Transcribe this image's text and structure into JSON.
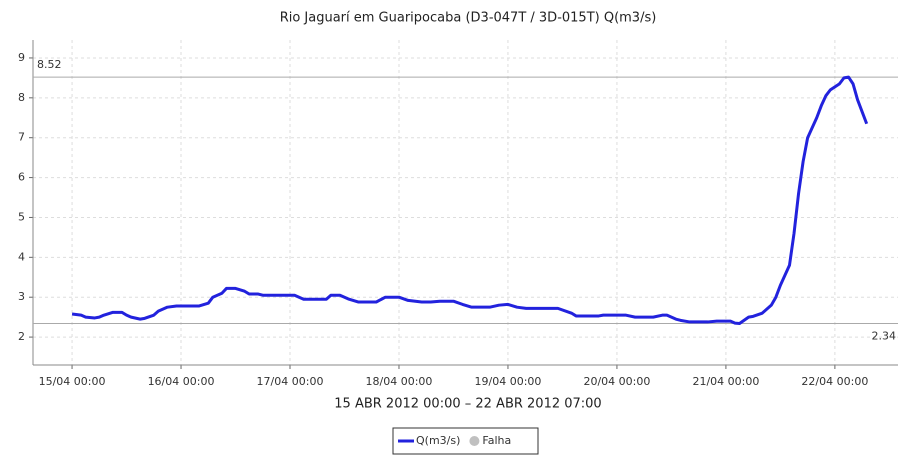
{
  "chart_data": {
    "type": "line",
    "title": "Rio Jaguarí em Guaripocaba (D3-047T / 3D-015T) Q(m3/s)",
    "subtitle": "15 ABR 2012 00:00 – 22 ABR 2012 07:00",
    "x": [
      "2012-04-15T00:00",
      "2012-04-15T02:00",
      "2012-04-15T03:00",
      "2012-04-15T05:00",
      "2012-04-15T06:00",
      "2012-04-15T07:00",
      "2012-04-15T09:00",
      "2012-04-15T11:00",
      "2012-04-15T12:00",
      "2012-04-15T13:00",
      "2012-04-15T15:00",
      "2012-04-15T16:00",
      "2012-04-15T18:00",
      "2012-04-15T19:00",
      "2012-04-15T21:00",
      "2012-04-15T23:00",
      "2012-04-16T04:00",
      "2012-04-16T06:00",
      "2012-04-16T07:00",
      "2012-04-16T09:00",
      "2012-04-16T10:00",
      "2012-04-16T12:00",
      "2012-04-16T14:00",
      "2012-04-16T15:00",
      "2012-04-16T17:00",
      "2012-04-16T18:00",
      "2012-04-17T01:00",
      "2012-04-17T03:00",
      "2012-04-17T08:00",
      "2012-04-17T09:00",
      "2012-04-17T11:00",
      "2012-04-17T13:00",
      "2012-04-17T15:00",
      "2012-04-17T19:00",
      "2012-04-17T21:00",
      "2012-04-18T00:00",
      "2012-04-18T02:00",
      "2012-04-18T05:00",
      "2012-04-18T07:00",
      "2012-04-18T09:00",
      "2012-04-18T12:00",
      "2012-04-18T14:00",
      "2012-04-18T16:00",
      "2012-04-18T20:00",
      "2012-04-18T22:00",
      "2012-04-19T00:00",
      "2012-04-19T02:00",
      "2012-04-19T04:00",
      "2012-04-19T11:00",
      "2012-04-19T14:00",
      "2012-04-19T15:00",
      "2012-04-19T20:00",
      "2012-04-19T21:00",
      "2012-04-20T02:00",
      "2012-04-20T04:00",
      "2012-04-20T08:00",
      "2012-04-20T10:00",
      "2012-04-20T11:00",
      "2012-04-20T13:00",
      "2012-04-20T14:00",
      "2012-04-20T16:00",
      "2012-04-20T20:00",
      "2012-04-20T22:00",
      "2012-04-21T01:00",
      "2012-04-21T02:00",
      "2012-04-21T03:00",
      "2012-04-21T05:00",
      "2012-04-21T06:00",
      "2012-04-21T08:00",
      "2012-04-21T10:00",
      "2012-04-21T11:00",
      "2012-04-21T12:00",
      "2012-04-21T13:00",
      "2012-04-21T14:00",
      "2012-04-21T15:00",
      "2012-04-21T16:00",
      "2012-04-21T17:00",
      "2012-04-21T18:00",
      "2012-04-21T20:00",
      "2012-04-21T21:00",
      "2012-04-21T22:00",
      "2012-04-21T23:00",
      "2012-04-22T01:00",
      "2012-04-22T02:00",
      "2012-04-22T03:00",
      "2012-04-22T04:00",
      "2012-04-22T05:00",
      "2012-04-22T07:00"
    ],
    "series": [
      {
        "name": "Q(m3/s)",
        "color": "#2222dd",
        "values": [
          2.58,
          2.55,
          2.5,
          2.48,
          2.5,
          2.55,
          2.62,
          2.62,
          2.55,
          2.5,
          2.45,
          2.47,
          2.55,
          2.65,
          2.75,
          2.78,
          2.78,
          2.85,
          3.0,
          3.1,
          3.22,
          3.22,
          3.15,
          3.08,
          3.08,
          3.05,
          3.05,
          2.95,
          2.95,
          3.05,
          3.05,
          2.95,
          2.88,
          2.88,
          3.0,
          3.0,
          2.92,
          2.88,
          2.88,
          2.9,
          2.9,
          2.82,
          2.75,
          2.75,
          2.8,
          2.82,
          2.75,
          2.72,
          2.72,
          2.6,
          2.53,
          2.53,
          2.55,
          2.55,
          2.5,
          2.5,
          2.55,
          2.55,
          2.45,
          2.42,
          2.38,
          2.38,
          2.4,
          2.4,
          2.35,
          2.34,
          2.5,
          2.52,
          2.6,
          2.8,
          3.0,
          3.3,
          3.55,
          3.8,
          4.6,
          5.6,
          6.4,
          7.0,
          7.5,
          7.8,
          8.05,
          8.2,
          8.35,
          8.5,
          8.52,
          8.35,
          7.95,
          7.35
        ]
      }
    ],
    "failure": {
      "name": "Falha",
      "color": "#c0c0c0"
    },
    "max_line": 8.52,
    "min_line": 2.34,
    "xlim": [
      "2012-04-14T15:24",
      "2012-04-22T13:54"
    ],
    "xticks": [
      {
        "value": "2012-04-15T00:00",
        "label": "15/04 00:00"
      },
      {
        "value": "2012-04-16T00:00",
        "label": "16/04 00:00"
      },
      {
        "value": "2012-04-17T00:00",
        "label": "17/04 00:00"
      },
      {
        "value": "2012-04-18T00:00",
        "label": "18/04 00:00"
      },
      {
        "value": "2012-04-19T00:00",
        "label": "19/04 00:00"
      },
      {
        "value": "2012-04-20T00:00",
        "label": "20/04 00:00"
      },
      {
        "value": "2012-04-21T00:00",
        "label": "21/04 00:00"
      },
      {
        "value": "2012-04-22T00:00",
        "label": "22/04 00:00"
      }
    ],
    "ylim": [
      1.3,
      9.45
    ],
    "yticks": [
      2,
      3,
      4,
      5,
      6,
      7,
      8,
      9
    ],
    "grid": true
  }
}
